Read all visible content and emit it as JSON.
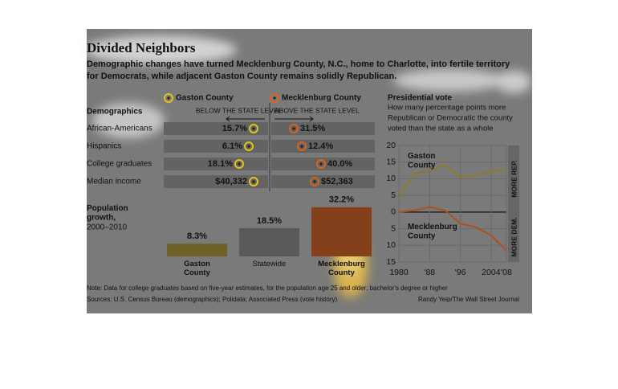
{
  "chart_data": [
    {
      "type": "dot",
      "title": "Divided Neighbors",
      "subtitle": [
        "Demographic changes have turned Mecklenburg County, N.C., home to Charlotte, into fertile territory",
        "for Democrats, while adjacent Gaston County remains solidly Republican."
      ],
      "row_header": "Demographics",
      "left_label": "BELOW THE STATE LEVEL",
      "right_label": "ABOVE THE STATE LEVEL",
      "categories": [
        "African-Americans",
        "Hispanics",
        "College graduates",
        "Median income"
      ],
      "series": [
        {
          "name": "Gaston County",
          "color": "#e3c21a",
          "values": [
            15.7,
            6.1,
            18.1,
            40332
          ],
          "value_labels": [
            "15.7%",
            "6.1%",
            "18.1%",
            "$40,332"
          ]
        },
        {
          "name": "Mecklenburg County",
          "color": "#d8661a",
          "values": [
            31.5,
            12.4,
            40.0,
            52363
          ],
          "value_labels": [
            "31.5%",
            "12.4%",
            "40.0%",
            "$52,363"
          ]
        }
      ]
    },
    {
      "type": "bar",
      "title": "Population growth,",
      "subtitle": "2000–2010",
      "categories": [
        "Gaston County",
        "Statewide",
        "Mecklenburg County"
      ],
      "values": [
        8.3,
        18.5,
        32.2
      ],
      "value_labels": [
        "8.3%",
        "18.5%",
        "32.2%"
      ],
      "colors": [
        "#6e6128",
        "#5a5a5a",
        "#84401a"
      ]
    },
    {
      "type": "line",
      "title": "Presidential vote",
      "subtitle": [
        "How many percentage points more",
        "Republican or Democratic the county",
        "voted than the state as a whole"
      ],
      "x": [
        1980,
        1984,
        1988,
        1992,
        1996,
        2000,
        2004,
        2008
      ],
      "xlim": [
        1980,
        2008
      ],
      "xticks": [
        1980,
        {
          "value": 1988,
          "label": "'88"
        },
        {
          "value": 1996,
          "label": "'96"
        },
        2004,
        {
          "value": 2008,
          "label": "'08"
        }
      ],
      "ylim": [
        -15,
        20
      ],
      "yticks": [
        20,
        15,
        10,
        5,
        0,
        {
          "value": -5,
          "label": "5"
        },
        {
          "value": -10,
          "label": "10"
        },
        {
          "value": -15,
          "label": "15"
        }
      ],
      "side_labels": [
        "MORE REP.",
        "MORE DEM."
      ],
      "grid": true,
      "series": [
        {
          "name": "Gaston County",
          "color": "#8a7a2a",
          "values": [
            5,
            11.5,
            12.5,
            14,
            10.5,
            11,
            12,
            13
          ]
        },
        {
          "name": "Mecklenburg County",
          "color": "#b0501a",
          "values": [
            0,
            0.5,
            1.5,
            0.5,
            -3.5,
            -4.5,
            -7,
            -11.5
          ]
        }
      ]
    },
    {
      "type": "note",
      "note": "Note: Data for college graduates based on five-year estimates, for the population age 25 and older; bachelor's degree or higher",
      "sources": "Sources: U.S. Census Bureau (demographics); Polidata; Associated Press (vote history)",
      "credit": "Randy Yeip/The Wall Street Journal"
    }
  ]
}
